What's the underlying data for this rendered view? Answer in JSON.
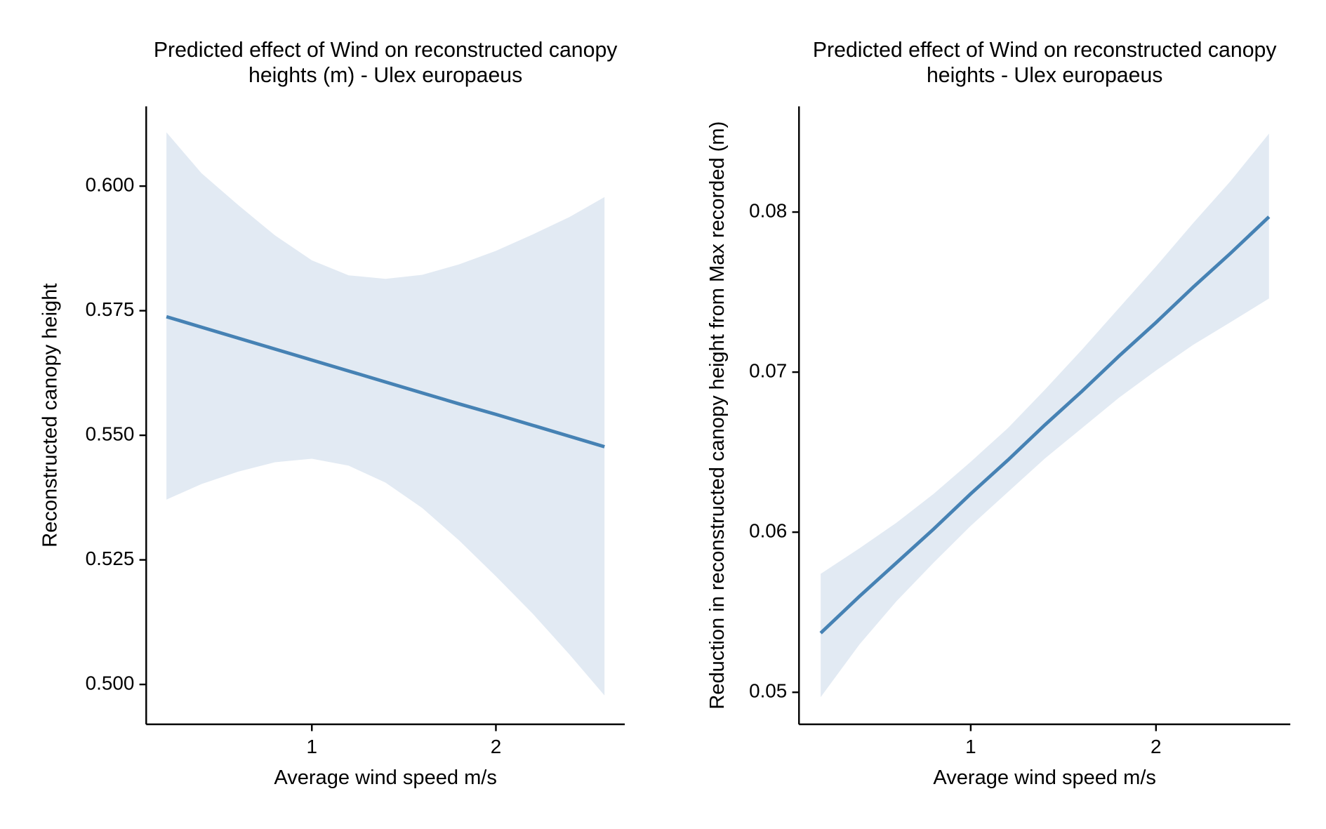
{
  "chart_data": [
    {
      "type": "line",
      "title": [
        "Predicted effect of Wind on reconstructed canopy",
        "heights (m) - Ulex europaeus"
      ],
      "x_label": "Average wind speed m/s",
      "y_label": "Reconstructed canopy height",
      "x": [
        0.21,
        0.4,
        0.6,
        0.8,
        1.0,
        1.2,
        1.4,
        1.6,
        1.8,
        2.0,
        2.2,
        2.4,
        2.59
      ],
      "series": [
        {
          "color": "#4682b4",
          "band_color": "#e2eaf3",
          "values": [
            0.5738,
            0.5717,
            0.5695,
            0.5673,
            0.5651,
            0.5629,
            0.5607,
            0.5585,
            0.5563,
            0.5542,
            0.552,
            0.5498,
            0.5477
          ],
          "lower": [
            0.5371,
            0.5402,
            0.5427,
            0.5446,
            0.5453,
            0.5439,
            0.5405,
            0.5354,
            0.5289,
            0.5217,
            0.5142,
            0.506,
            0.4978
          ],
          "upper": [
            0.6108,
            0.6026,
            0.5962,
            0.5901,
            0.5851,
            0.5821,
            0.5814,
            0.5822,
            0.5843,
            0.587,
            0.5903,
            0.5938,
            0.5978
          ]
        }
      ],
      "xlim": [
        0.1,
        2.7
      ],
      "xticks": [
        1,
        2
      ],
      "ylim": [
        0.492,
        0.616
      ],
      "yticks": [
        {
          "value": 0.5,
          "label": "0.500"
        },
        {
          "value": 0.525,
          "label": "0.525"
        },
        {
          "value": 0.55,
          "label": "0.550"
        },
        {
          "value": 0.575,
          "label": "0.575"
        },
        {
          "value": 0.6,
          "label": "0.600"
        }
      ],
      "grid": false
    },
    {
      "type": "line",
      "title": [
        "Predicted effect of Wind on reconstructed canopy",
        "heights - Ulex europaeus"
      ],
      "x_label": "Average wind speed m/s",
      "y_label": "Reduction in reconstructed canopy height from Max recorded (m)",
      "x": [
        0.19,
        0.4,
        0.6,
        0.8,
        1.0,
        1.2,
        1.4,
        1.6,
        1.8,
        2.0,
        2.2,
        2.4,
        2.61
      ],
      "series": [
        {
          "color": "#4682b4",
          "band_color": "#e2eaf3",
          "values": [
            0.0537,
            0.056,
            0.0581,
            0.0602,
            0.0624,
            0.0645,
            0.0667,
            0.0688,
            0.071,
            0.0731,
            0.0753,
            0.0774,
            0.0797
          ],
          "lower": [
            0.0497,
            0.053,
            0.0557,
            0.0581,
            0.0604,
            0.0625,
            0.0646,
            0.0665,
            0.0684,
            0.0701,
            0.0717,
            0.0731,
            0.0746
          ],
          "upper": [
            0.0574,
            0.059,
            0.0606,
            0.0624,
            0.0644,
            0.0665,
            0.0689,
            0.0714,
            0.074,
            0.0766,
            0.0793,
            0.0819,
            0.0849
          ]
        }
      ],
      "xlim": [
        0.073,
        2.725
      ],
      "xticks": [
        1,
        2
      ],
      "ylim": [
        0.048,
        0.0866
      ],
      "yticks": [
        0.05,
        0.06,
        0.07,
        0.08
      ],
      "grid": false
    }
  ]
}
